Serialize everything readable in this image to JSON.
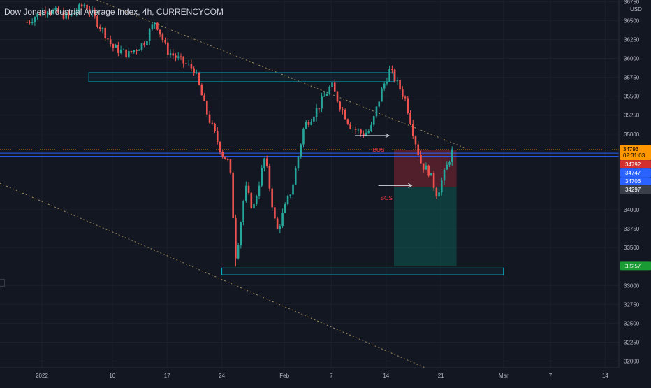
{
  "chart_data": {
    "type": "candlestick",
    "title": "Dow Jones Industrial Average Index, 4h, CURRENCYCOM",
    "currency": "USD",
    "ylim": [
      31950,
      36850
    ],
    "y_ticks": [
      "36750",
      "36500",
      "36250",
      "36000",
      "35750",
      "35500",
      "35250",
      "35000",
      "34000",
      "33750",
      "33500",
      "33000",
      "32750",
      "32500",
      "32250",
      "32000"
    ],
    "x_ticks": [
      "2022",
      "10",
      "17",
      "24",
      "Feb",
      "7",
      "14",
      "21",
      "Mar",
      "7",
      "14"
    ],
    "price_labels": [
      {
        "value": 34793,
        "text": "34793",
        "sub": "02:31:03",
        "color": "#ff9800",
        "text_color": "#000000"
      },
      {
        "value": 34792,
        "text": "34792",
        "color": "#d32f2f",
        "text_color": "#ffffff"
      },
      {
        "value": 34747,
        "text": "34747",
        "color": "#2962ff",
        "text_color": "#ffffff"
      },
      {
        "value": 34706,
        "text": "34706",
        "color": "#2962ff",
        "text_color": "#ffffff"
      },
      {
        "value": 34297,
        "text": "34297",
        "color": "#3a3e48",
        "text_color": "#ffffff"
      },
      {
        "value": 33257,
        "text": "33257",
        "color": "#1b9b33",
        "text_color": "#ffffff"
      }
    ],
    "horizontal_lines": [
      {
        "value": 34793,
        "color": "#ff9800",
        "style": "dotted"
      },
      {
        "value": 34747,
        "color": "#2962ff",
        "style": "solid"
      },
      {
        "value": 34706,
        "color": "#2962ff",
        "style": "solid"
      }
    ],
    "zones": [
      {
        "name": "resistance",
        "x_from": "2022-01-07",
        "x_to": "2022-02-15",
        "y_from": 35690,
        "y_to": 35810,
        "border": "#00bcd4"
      },
      {
        "name": "support",
        "x_from": "2022-01-24",
        "x_to": "2022-03-01",
        "y_from": 33140,
        "y_to": 33230,
        "border": "#00bcd4"
      }
    ],
    "position": {
      "type": "short",
      "x_from": "2022-02-15",
      "x_to": "2022-02-23",
      "stop": 34790,
      "entry": 34297,
      "target": 33257
    },
    "annotations": [
      {
        "text": "BOS",
        "x": "2022-02-13",
        "y": 34820,
        "color": "#f23645"
      },
      {
        "text": "BOS",
        "x": "2022-02-14",
        "y": 34220,
        "color": "#f23645"
      }
    ],
    "candles": []
  }
}
